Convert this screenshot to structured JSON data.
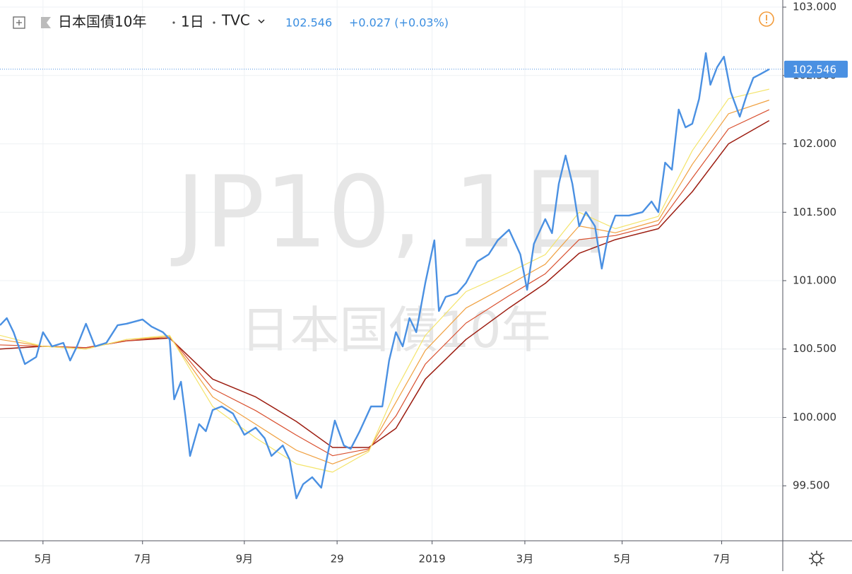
{
  "chart_data": {
    "type": "line",
    "title": "日本国債10年",
    "interval": "1日",
    "source": "TVC",
    "change": "+0.027 (+0.03%)",
    "watermark": "JP10, 1日",
    "grid": true,
    "ylim": [
      99.098,
      103.052
    ],
    "yticks": [
      {
        "value": 99.5,
        "label": "99.500"
      },
      {
        "value": 100,
        "label": "100.000"
      },
      {
        "value": 100.5,
        "label": "100.500"
      },
      {
        "value": 101,
        "label": "101.000"
      },
      {
        "value": 101.5,
        "label": "101.500"
      },
      {
        "value": 102,
        "label": "102.000"
      },
      {
        "value": 102.5,
        "label": "102.500"
      },
      {
        "value": 103,
        "label": "103.000"
      }
    ],
    "xlim": [
      0,
      346
    ],
    "xticks": [
      {
        "value": 19,
        "label": "5月"
      },
      {
        "value": 63,
        "label": "7月"
      },
      {
        "value": 108,
        "label": "9月"
      },
      {
        "value": 149,
        "label": "29"
      },
      {
        "value": 191,
        "label": "2019"
      },
      {
        "value": 232,
        "label": "3月"
      },
      {
        "value": 275,
        "label": "5月"
      },
      {
        "value": 319,
        "label": "7月"
      }
    ],
    "series": [
      {
        "color": "#9c1c10",
        "width": 1.5,
        "x": [
          0,
          19,
          38,
          56,
          75,
          94,
          113,
          131,
          147,
          163,
          175,
          188,
          206,
          225,
          241,
          256,
          272,
          291,
          306,
          322,
          340
        ],
        "values": [
          100.5,
          100.52,
          100.51,
          100.56,
          100.58,
          100.28,
          100.15,
          99.97,
          99.78,
          99.78,
          99.92,
          100.28,
          100.57,
          100.8,
          100.98,
          101.2,
          101.3,
          101.38,
          101.65,
          102.0,
          102.17
        ]
      },
      {
        "color": "#d9502f",
        "width": 1.2,
        "x": [
          0,
          19,
          38,
          56,
          75,
          94,
          113,
          131,
          147,
          163,
          175,
          188,
          206,
          225,
          241,
          256,
          272,
          291,
          306,
          322,
          340
        ],
        "values": [
          100.53,
          100.52,
          100.51,
          100.56,
          100.59,
          100.21,
          100.05,
          99.87,
          99.72,
          99.77,
          100.01,
          100.39,
          100.69,
          100.89,
          101.05,
          101.3,
          101.33,
          101.41,
          101.75,
          102.11,
          102.25
        ]
      },
      {
        "color": "#f0a040",
        "width": 1.2,
        "x": [
          0,
          19,
          38,
          56,
          75,
          94,
          113,
          131,
          147,
          163,
          175,
          188,
          206,
          225,
          241,
          256,
          272,
          291,
          306,
          322,
          340
        ],
        "values": [
          100.57,
          100.52,
          100.5,
          100.57,
          100.59,
          100.15,
          99.95,
          99.76,
          99.66,
          99.76,
          100.11,
          100.49,
          100.8,
          100.97,
          101.12,
          101.4,
          101.35,
          101.44,
          101.85,
          102.22,
          102.32
        ]
      },
      {
        "color": "#f4e46a",
        "width": 1.2,
        "x": [
          0,
          19,
          38,
          56,
          75,
          94,
          113,
          131,
          147,
          163,
          175,
          188,
          206,
          225,
          241,
          256,
          272,
          291,
          306,
          322,
          340
        ],
        "values": [
          100.6,
          100.52,
          100.5,
          100.57,
          100.6,
          100.08,
          99.85,
          99.66,
          99.6,
          99.75,
          100.2,
          100.6,
          100.92,
          101.06,
          101.19,
          101.5,
          101.38,
          101.47,
          101.95,
          102.33,
          102.4
        ]
      },
      {
        "color": "#4a90e2",
        "width": 2.4,
        "x": [
          0,
          3,
          6,
          11,
          16,
          19,
          23,
          28,
          31,
          34,
          38,
          42,
          47,
          52,
          56,
          63,
          67,
          72,
          75,
          77,
          80,
          82,
          84,
          88,
          91,
          94,
          98,
          103,
          108,
          113,
          117,
          120,
          125,
          128,
          131,
          134,
          138,
          142,
          145,
          148,
          152,
          155,
          159,
          164,
          169,
          172,
          175,
          178,
          181,
          184,
          188,
          192,
          194,
          197,
          202,
          206,
          211,
          216,
          220,
          225,
          230,
          233,
          236,
          241,
          244,
          247,
          250,
          253,
          256,
          259,
          263,
          266,
          269,
          272,
          278,
          284,
          288,
          291,
          294,
          297,
          300,
          303,
          306,
          309,
          312,
          314,
          317,
          320,
          323,
          327,
          330,
          333,
          336,
          340
        ],
        "values": [
          100.674,
          100.726,
          100.623,
          100.39,
          100.442,
          100.623,
          100.519,
          100.545,
          100.416,
          100.519,
          100.685,
          100.519,
          100.545,
          100.674,
          100.685,
          100.716,
          100.664,
          100.623,
          100.571,
          100.132,
          100.261,
          100.003,
          99.718,
          99.951,
          99.899,
          100.054,
          100.08,
          100.028,
          99.873,
          99.925,
          99.847,
          99.718,
          99.795,
          99.692,
          99.408,
          99.512,
          99.563,
          99.486,
          99.744,
          99.977,
          99.795,
          99.77,
          99.899,
          100.08,
          100.08,
          100.416,
          100.623,
          100.519,
          100.726,
          100.623,
          100.984,
          101.295,
          100.778,
          100.881,
          100.907,
          100.984,
          101.14,
          101.192,
          101.295,
          101.372,
          101.192,
          100.933,
          101.269,
          101.45,
          101.347,
          101.708,
          101.915,
          101.708,
          101.398,
          101.501,
          101.398,
          101.088,
          101.347,
          101.476,
          101.476,
          101.501,
          101.579,
          101.501,
          101.863,
          101.811,
          102.251,
          102.121,
          102.147,
          102.328,
          102.664,
          102.432,
          102.561,
          102.638,
          102.38,
          102.199,
          102.354,
          102.483,
          102.509,
          102.546
        ]
      }
    ]
  }
}
